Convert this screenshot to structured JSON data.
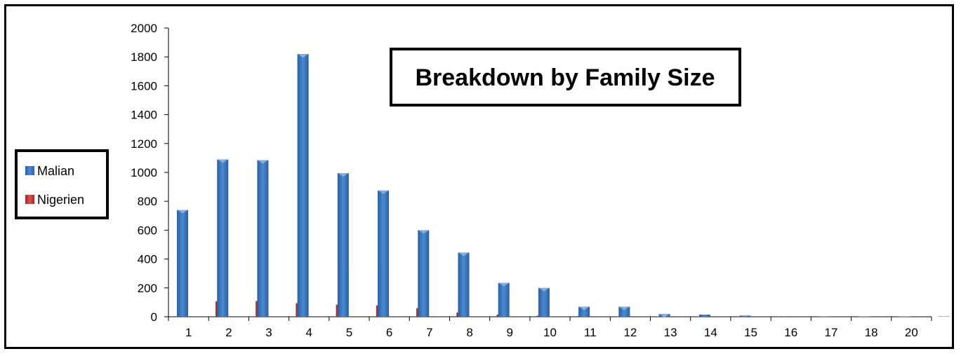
{
  "chart_data": {
    "type": "bar",
    "title": "Breakdown by Family Size",
    "xlabel": "",
    "ylabel": "",
    "categories": [
      "1",
      "2",
      "3",
      "4",
      "5",
      "6",
      "7",
      "8",
      "9",
      "10",
      "11",
      "12",
      "13",
      "14",
      "15",
      "16",
      "17",
      "18",
      "20"
    ],
    "series": [
      {
        "name": "Malian",
        "color": "#3b77c0",
        "values": [
          740,
          1090,
          1085,
          1820,
          995,
          875,
          600,
          445,
          235,
          200,
          70,
          70,
          20,
          15,
          8,
          4,
          3,
          2,
          1
        ]
      },
      {
        "name": "Nigerien",
        "color": "#c43a3a",
        "values": [
          108,
          110,
          95,
          85,
          80,
          60,
          30,
          15,
          7,
          5,
          2,
          2,
          1,
          1,
          0,
          0,
          0,
          0,
          0
        ]
      }
    ],
    "ylim": [
      0,
      2000
    ],
    "yticks": [
      0,
      200,
      400,
      600,
      800,
      1000,
      1200,
      1400,
      1600,
      1800,
      2000
    ],
    "grid": false,
    "legend_position": "left"
  }
}
